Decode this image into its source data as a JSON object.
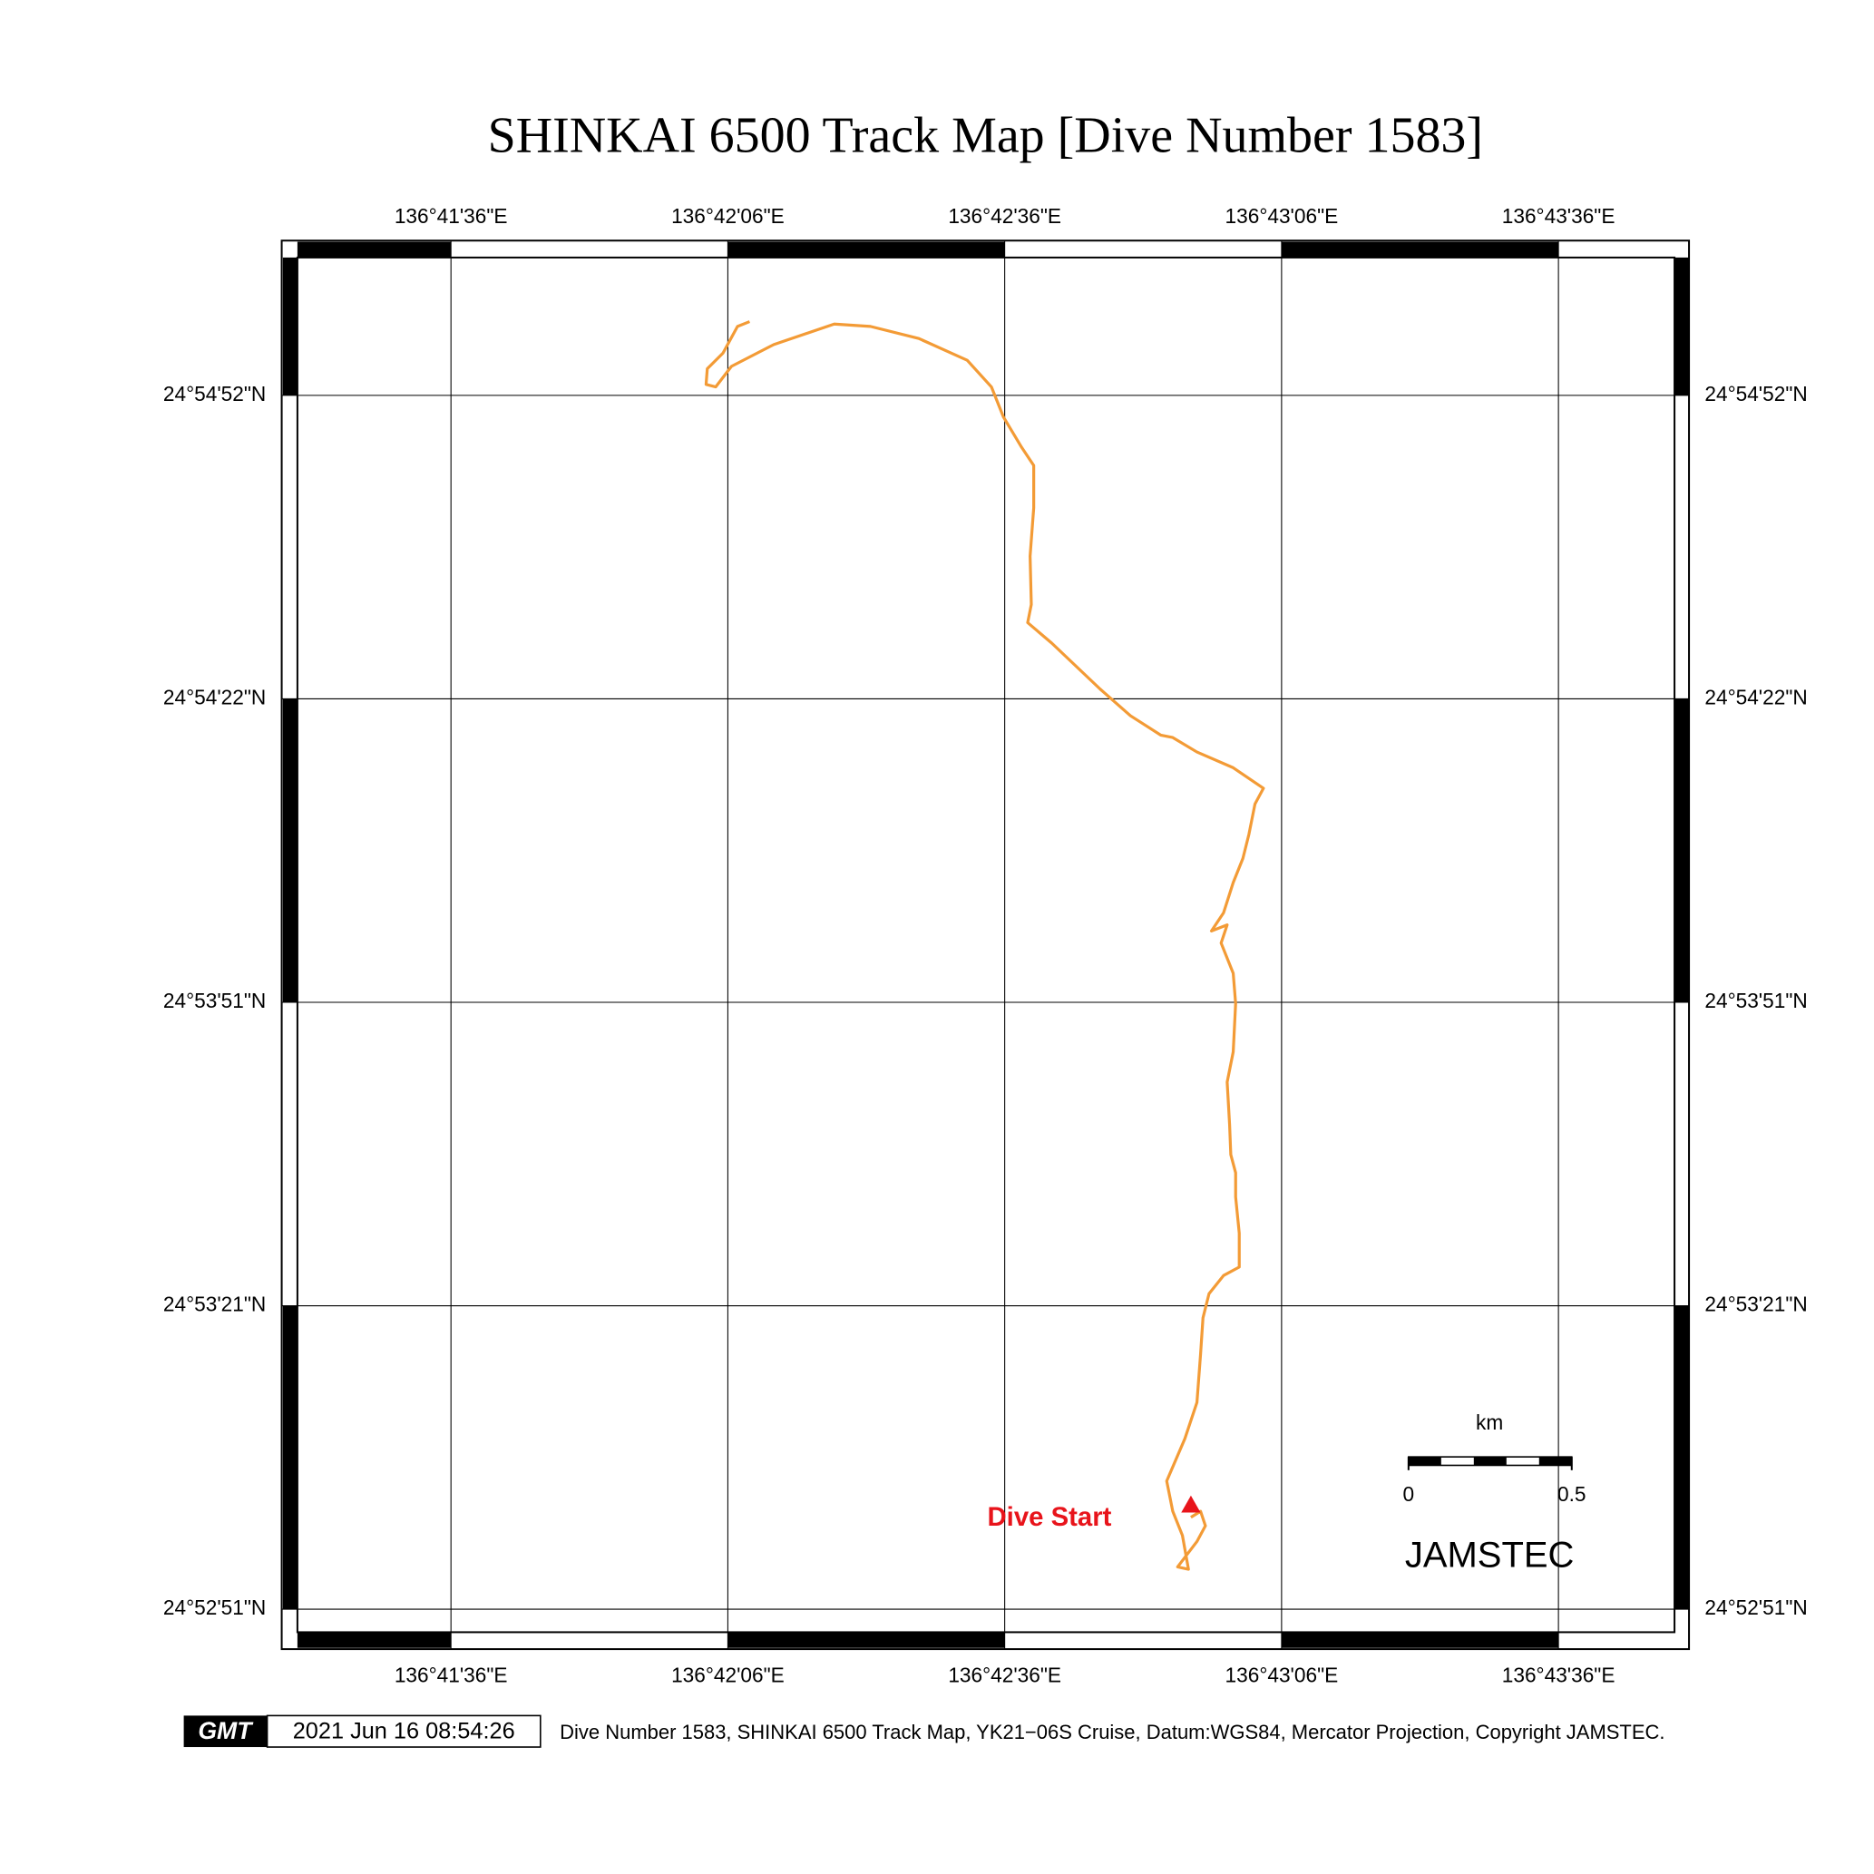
{
  "title": "SHINKAI 6500 Track Map [Dive Number 1583]",
  "top_axis_labels": [
    "136°41'36\"E",
    "136°42'06\"E",
    "136°42'36\"E",
    "136°43'06\"E",
    "136°43'36\"E"
  ],
  "bottom_axis_labels": [
    "136°41'36\"E",
    "136°42'06\"E",
    "136°42'36\"E",
    "136°43'06\"E",
    "136°43'36\"E"
  ],
  "left_axis_labels": [
    "24°54'52\"N",
    "24°54'22\"N",
    "24°53'51\"N",
    "24°53'21\"N",
    "24°52'51\"N"
  ],
  "right_axis_labels": [
    "24°54'52\"N",
    "24°54'22\"N",
    "24°53'51\"N",
    "24°53'21\"N",
    "24°52'51\"N"
  ],
  "annotation": "Dive Start",
  "scale_bar": {
    "unit": "km",
    "labels": [
      0,
      0.5
    ]
  },
  "logo_text": "JAMSTEC",
  "footer": {
    "gmt": "GMT",
    "timestamp": "2021 Jun 16 08:54:26",
    "caption": "Dive Number 1583, SHINKAI 6500 Track Map, YK21−06S Cruise, Datum:WGS84, Mercator Projection, Copyright JAMSTEC."
  }
}
